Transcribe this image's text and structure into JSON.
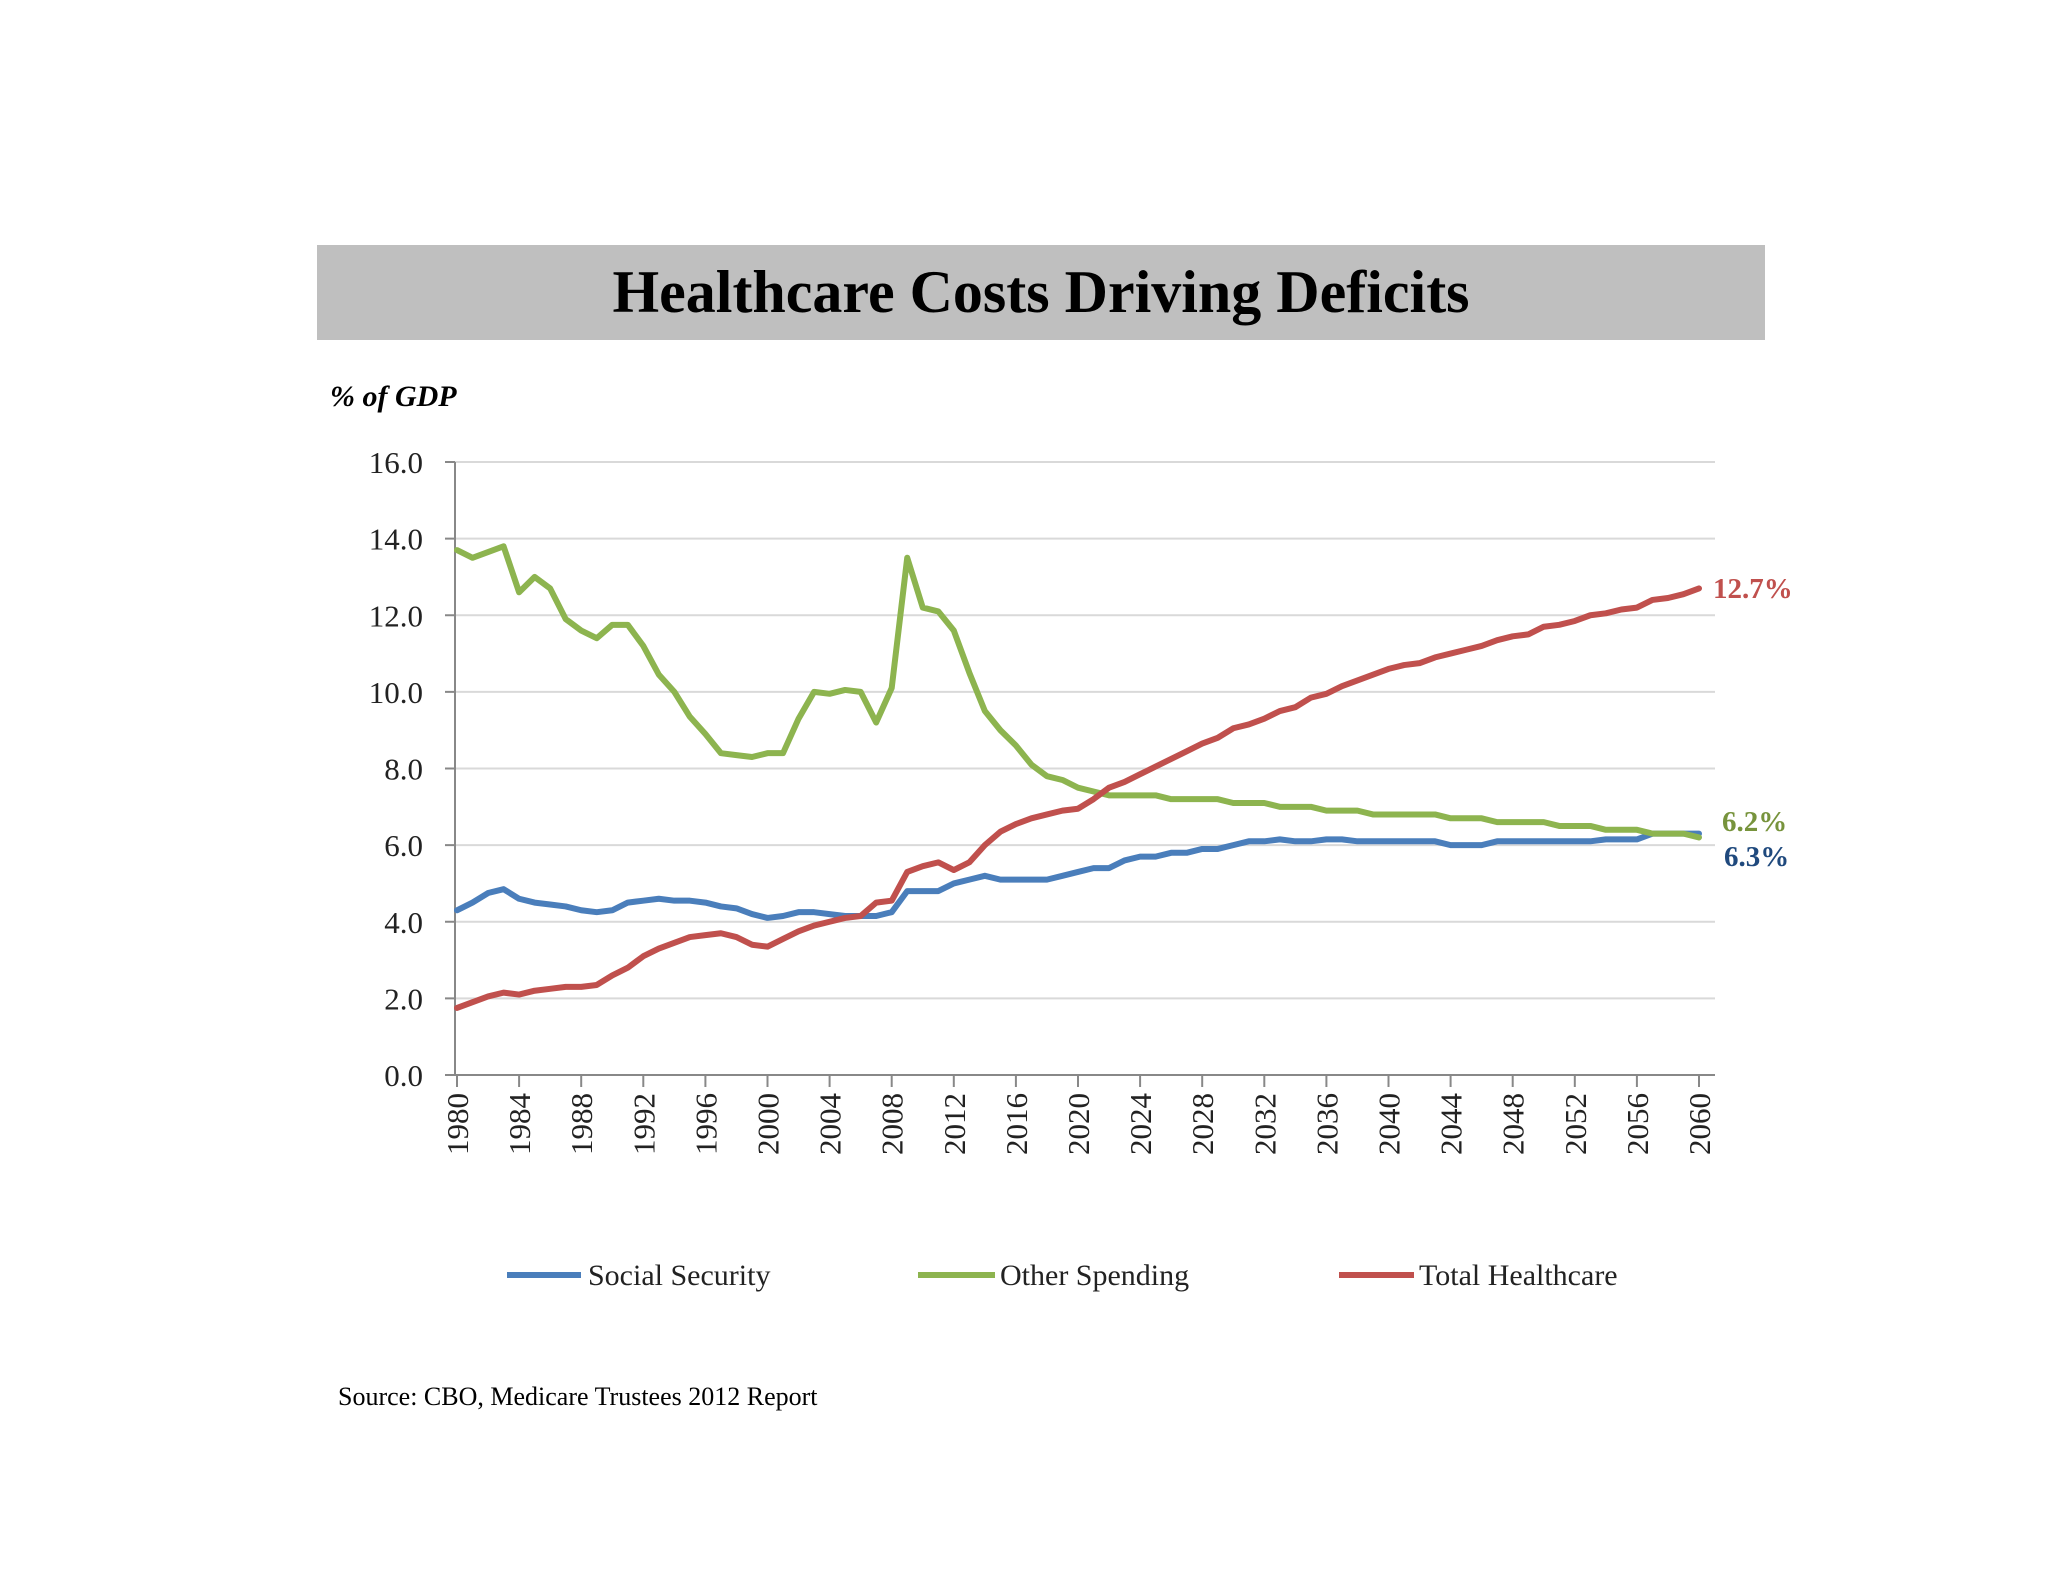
{
  "chart_data": {
    "type": "line",
    "title": "Healthcare Costs Driving Deficits",
    "ylabel": "% of GDP",
    "xlabel": "",
    "source": "Source: CBO, Medicare Trustees 2012 Report",
    "xlim": [
      1980,
      2060
    ],
    "ylim": [
      0,
      16
    ],
    "yticks": [
      "0.0",
      "2.0",
      "4.0",
      "6.0",
      "8.0",
      "10.0",
      "12.0",
      "14.0",
      "16.0"
    ],
    "xticks": [
      "1980",
      "1984",
      "1988",
      "1992",
      "1996",
      "2000",
      "2004",
      "2008",
      "2012",
      "2016",
      "2020",
      "2024",
      "2028",
      "2032",
      "2036",
      "2040",
      "2044",
      "2048",
      "2052",
      "2056",
      "2060"
    ],
    "grid": true,
    "legend_position": "bottom",
    "x_start": 1980,
    "series": [
      {
        "name": "Social Security",
        "color": "#4a7ebb",
        "end_label": "6.3%",
        "end_label_color": "#1f497d",
        "values": [
          4.3,
          4.5,
          4.75,
          4.85,
          4.6,
          4.5,
          4.45,
          4.4,
          4.3,
          4.25,
          4.3,
          4.5,
          4.55,
          4.6,
          4.55,
          4.55,
          4.5,
          4.4,
          4.35,
          4.2,
          4.1,
          4.15,
          4.25,
          4.25,
          4.2,
          4.15,
          4.15,
          4.15,
          4.25,
          4.8,
          4.8,
          4.8,
          5.0,
          5.1,
          5.2,
          5.1,
          5.1,
          5.1,
          5.1,
          5.2,
          5.3,
          5.4,
          5.4,
          5.6,
          5.7,
          5.7,
          5.8,
          5.8,
          5.9,
          5.9,
          6.0,
          6.1,
          6.1,
          6.15,
          6.1,
          6.1,
          6.15,
          6.15,
          6.1,
          6.1,
          6.1,
          6.1,
          6.1,
          6.1,
          6.0,
          6.0,
          6.0,
          6.1,
          6.1,
          6.1,
          6.1,
          6.1,
          6.1,
          6.1,
          6.15,
          6.15,
          6.15,
          6.3,
          6.3,
          6.3,
          6.3
        ]
      },
      {
        "name": "Other Spending",
        "color": "#8db44f",
        "end_label": "6.2%",
        "end_label_color": "#77933c",
        "values": [
          13.7,
          13.5,
          13.65,
          13.8,
          12.6,
          13.0,
          12.7,
          11.9,
          11.6,
          11.4,
          11.75,
          11.75,
          11.2,
          10.45,
          10.0,
          9.35,
          8.9,
          8.4,
          8.35,
          8.3,
          8.4,
          8.4,
          9.3,
          10.0,
          9.95,
          10.05,
          10.0,
          9.2,
          10.1,
          13.5,
          12.2,
          12.1,
          11.6,
          10.5,
          9.5,
          9.0,
          8.6,
          8.1,
          7.8,
          7.7,
          7.5,
          7.4,
          7.3,
          7.3,
          7.3,
          7.3,
          7.2,
          7.2,
          7.2,
          7.2,
          7.1,
          7.1,
          7.1,
          7.0,
          7.0,
          7.0,
          6.9,
          6.9,
          6.9,
          6.8,
          6.8,
          6.8,
          6.8,
          6.8,
          6.7,
          6.7,
          6.7,
          6.6,
          6.6,
          6.6,
          6.6,
          6.5,
          6.5,
          6.5,
          6.4,
          6.4,
          6.4,
          6.3,
          6.3,
          6.3,
          6.2
        ]
      },
      {
        "name": "Total Healthcare",
        "color": "#c0504d",
        "end_label": "12.7%",
        "end_label_color": "#c0504d",
        "values": [
          1.75,
          1.9,
          2.05,
          2.15,
          2.1,
          2.2,
          2.25,
          2.3,
          2.3,
          2.35,
          2.6,
          2.8,
          3.1,
          3.3,
          3.45,
          3.6,
          3.65,
          3.7,
          3.6,
          3.4,
          3.35,
          3.55,
          3.75,
          3.9,
          4.0,
          4.1,
          4.15,
          4.5,
          4.55,
          5.3,
          5.45,
          5.55,
          5.35,
          5.55,
          6.0,
          6.35,
          6.55,
          6.7,
          6.8,
          6.9,
          6.95,
          7.2,
          7.5,
          7.65,
          7.85,
          8.05,
          8.25,
          8.45,
          8.65,
          8.8,
          9.05,
          9.15,
          9.3,
          9.5,
          9.6,
          9.85,
          9.95,
          10.15,
          10.3,
          10.45,
          10.6,
          10.7,
          10.75,
          10.9,
          11.0,
          11.1,
          11.2,
          11.35,
          11.45,
          11.5,
          11.7,
          11.75,
          11.85,
          12.0,
          12.05,
          12.15,
          12.2,
          12.4,
          12.45,
          12.55,
          12.7
        ]
      }
    ]
  }
}
